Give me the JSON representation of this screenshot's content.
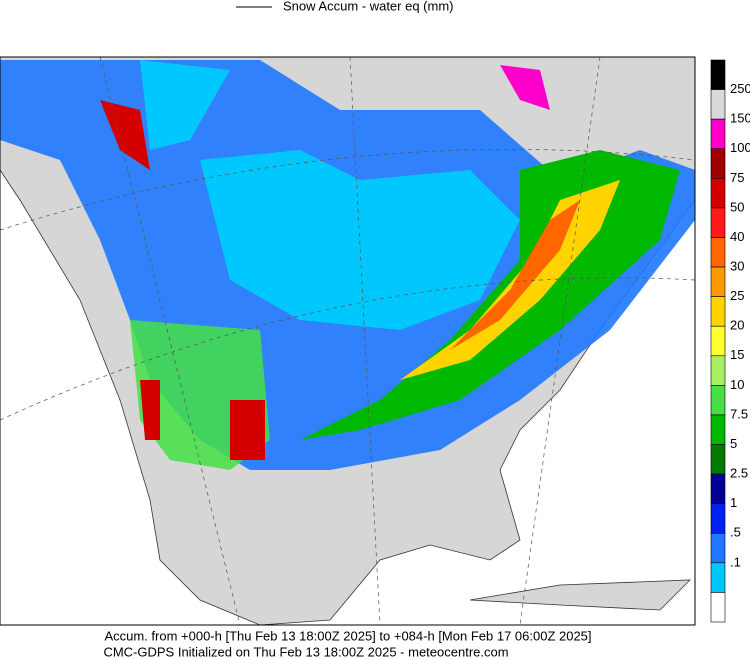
{
  "header": {
    "legend_label": "Snow Accum - water eq (mm)"
  },
  "colorbar": {
    "labels": [
      "250",
      "150",
      "100",
      "75",
      "50",
      "40",
      "30",
      "25",
      "20",
      "15",
      "10",
      "7.5",
      "5",
      "2.5",
      "1",
      ".5",
      ".1"
    ],
    "colors": [
      "#000000",
      "#d9d9d9",
      "#ff00cc",
      "#a00000",
      "#d40000",
      "#ff1a1a",
      "#ff6600",
      "#ff9900",
      "#ffd400",
      "#ffff33",
      "#a8f060",
      "#44e044",
      "#00b800",
      "#007a00",
      "#000099",
      "#0022ee",
      "#1e78ff",
      "#00c8ff",
      "#ffffff"
    ]
  },
  "footer": {
    "line1": "Accum. from +000-h [Thu Feb 13 18:00Z 2025] to +084-h [Mon Feb 17 06:00Z 2025]",
    "line2": "CMC-GDPS Initialized on Thu Feb 13 18:00Z 2025 - meteocentre.com"
  }
}
